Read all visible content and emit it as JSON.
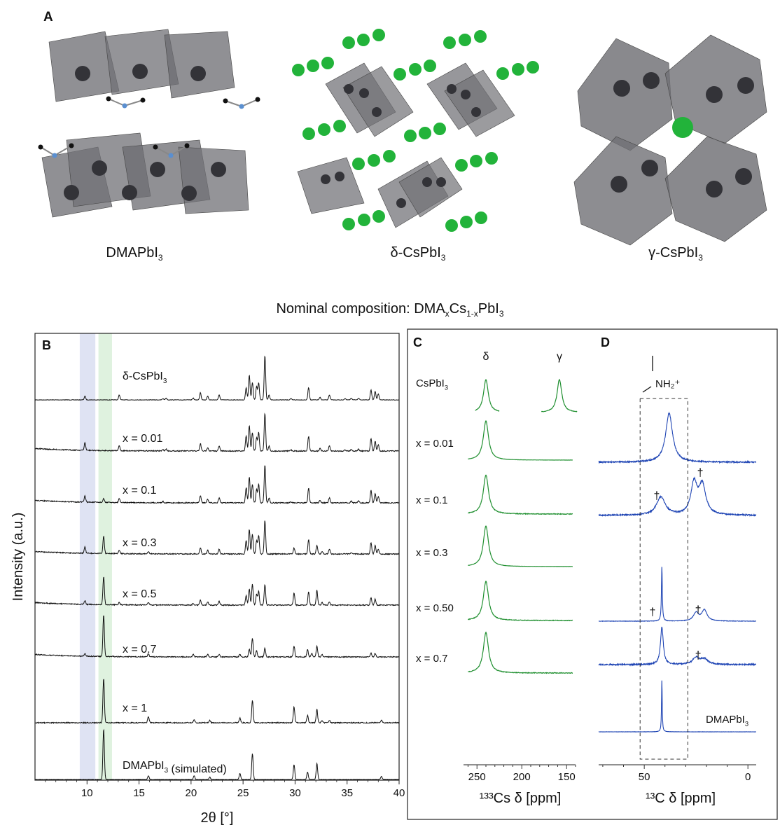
{
  "panelA": {
    "letter": "A",
    "structures": [
      {
        "main": "DMAPbI",
        "sub": "3"
      },
      {
        "main": "δ-CsPbI",
        "sub": "3"
      },
      {
        "main": "γ-CsPbI",
        "sub": "3"
      }
    ]
  },
  "composition_title": {
    "prefix": "Nominal composition: DMA",
    "sub1": "x",
    "mid": "Cs",
    "sub2": "1-x",
    "suffix": "PbI",
    "sub3": "3"
  },
  "colors": {
    "xrd": "#111111",
    "cs": "#1f8f2f",
    "c13": "#1e44b4",
    "band_blue": "#dfe3f3",
    "band_green": "#dff2df",
    "green_atom": "#22b33a",
    "octa": "#6b6b70"
  },
  "chart_data": [
    {
      "type": "line",
      "panel": "B",
      "xlabel": "2θ [°]",
      "ylabel": "Intensity (a.u.)",
      "xlim": [
        5,
        40
      ],
      "xticks": [
        10,
        15,
        20,
        25,
        30,
        35,
        40
      ],
      "highlight_bands": [
        {
          "x": [
            9.3,
            10.8
          ]
        },
        {
          "x": [
            11.1,
            12.4
          ]
        }
      ],
      "series": [
        {
          "name": "δ-CsPbI3",
          "label": "δ-CsPbI",
          "label_sub": "3",
          "peaks": [
            [
              9.8,
              0.06
            ],
            [
              13.1,
              0.08
            ],
            [
              17.3,
              0.02
            ],
            [
              17.6,
              0.03
            ],
            [
              20.2,
              0.03
            ],
            [
              20.9,
              0.12
            ],
            [
              21.6,
              0.06
            ],
            [
              22.7,
              0.08
            ],
            [
              25.3,
              0.2
            ],
            [
              25.6,
              0.4
            ],
            [
              25.9,
              0.28
            ],
            [
              26.3,
              0.22
            ],
            [
              26.5,
              0.28
            ],
            [
              27.1,
              0.72
            ],
            [
              27.5,
              0.08
            ],
            [
              29.6,
              0.02
            ],
            [
              31.3,
              0.2
            ],
            [
              32.4,
              0.04
            ],
            [
              33.3,
              0.08
            ],
            [
              34.8,
              0.02
            ],
            [
              35.4,
              0.03
            ],
            [
              36.1,
              0.03
            ],
            [
              37.3,
              0.16
            ],
            [
              37.7,
              0.14
            ],
            [
              38.0,
              0.1
            ]
          ]
        },
        {
          "name": "x = 0.01",
          "label": "x = 0.01",
          "peaks": [
            [
              9.8,
              0.12
            ],
            [
              13.1,
              0.08
            ],
            [
              17.3,
              0.02
            ],
            [
              17.6,
              0.03
            ],
            [
              20.9,
              0.12
            ],
            [
              21.6,
              0.06
            ],
            [
              22.7,
              0.08
            ],
            [
              25.3,
              0.25
            ],
            [
              25.6,
              0.42
            ],
            [
              25.9,
              0.3
            ],
            [
              26.3,
              0.22
            ],
            [
              26.5,
              0.3
            ],
            [
              27.1,
              0.62
            ],
            [
              27.5,
              0.08
            ],
            [
              29.6,
              0.02
            ],
            [
              31.3,
              0.24
            ],
            [
              32.4,
              0.04
            ],
            [
              33.3,
              0.08
            ],
            [
              34.8,
              0.02
            ],
            [
              35.4,
              0.03
            ],
            [
              36.1,
              0.03
            ],
            [
              37.3,
              0.2
            ],
            [
              37.7,
              0.16
            ],
            [
              38.0,
              0.1
            ]
          ]
        },
        {
          "name": "x = 0.1",
          "label": "x = 0.1",
          "peaks": [
            [
              9.8,
              0.1
            ],
            [
              11.6,
              0.06
            ],
            [
              13.1,
              0.06
            ],
            [
              17.3,
              0.02
            ],
            [
              20.9,
              0.12
            ],
            [
              21.6,
              0.06
            ],
            [
              22.7,
              0.08
            ],
            [
              25.3,
              0.25
            ],
            [
              25.6,
              0.42
            ],
            [
              25.9,
              0.3
            ],
            [
              26.3,
              0.22
            ],
            [
              26.5,
              0.3
            ],
            [
              27.1,
              0.62
            ],
            [
              27.5,
              0.08
            ],
            [
              29.6,
              0.02
            ],
            [
              31.3,
              0.24
            ],
            [
              32.4,
              0.04
            ],
            [
              33.3,
              0.08
            ],
            [
              35.4,
              0.03
            ],
            [
              36.1,
              0.03
            ],
            [
              37.3,
              0.2
            ],
            [
              37.7,
              0.16
            ],
            [
              38.0,
              0.1
            ]
          ]
        },
        {
          "name": "x = 0.3",
          "label": "x = 0.3",
          "peaks": [
            [
              9.8,
              0.1
            ],
            [
              11.6,
              0.28
            ],
            [
              13.1,
              0.05
            ],
            [
              15.9,
              0.03
            ],
            [
              20.9,
              0.1
            ],
            [
              21.6,
              0.06
            ],
            [
              22.7,
              0.08
            ],
            [
              25.3,
              0.22
            ],
            [
              25.6,
              0.4
            ],
            [
              25.9,
              0.32
            ],
            [
              26.3,
              0.22
            ],
            [
              26.5,
              0.3
            ],
            [
              27.1,
              0.55
            ],
            [
              29.9,
              0.1
            ],
            [
              31.3,
              0.24
            ],
            [
              32.1,
              0.14
            ],
            [
              32.6,
              0.04
            ],
            [
              33.3,
              0.08
            ],
            [
              35.4,
              0.02
            ],
            [
              37.3,
              0.18
            ],
            [
              37.7,
              0.14
            ],
            [
              38.0,
              0.08
            ]
          ]
        },
        {
          "name": "x = 0.5",
          "label": "x = 0.5",
          "peaks": [
            [
              9.8,
              0.06
            ],
            [
              11.6,
              0.46
            ],
            [
              13.1,
              0.04
            ],
            [
              15.9,
              0.04
            ],
            [
              20.2,
              0.03
            ],
            [
              20.9,
              0.08
            ],
            [
              21.6,
              0.05
            ],
            [
              22.7,
              0.06
            ],
            [
              25.3,
              0.16
            ],
            [
              25.6,
              0.26
            ],
            [
              25.9,
              0.34
            ],
            [
              26.3,
              0.18
            ],
            [
              26.5,
              0.22
            ],
            [
              27.1,
              0.34
            ],
            [
              29.9,
              0.2
            ],
            [
              31.3,
              0.22
            ],
            [
              32.1,
              0.24
            ],
            [
              32.6,
              0.04
            ],
            [
              33.3,
              0.05
            ],
            [
              37.3,
              0.12
            ],
            [
              37.7,
              0.1
            ]
          ]
        },
        {
          "name": "x = 0.7",
          "label": "x = 0.7",
          "peaks": [
            [
              9.8,
              0.04
            ],
            [
              11.6,
              0.68
            ],
            [
              15.9,
              0.05
            ],
            [
              20.2,
              0.04
            ],
            [
              21.6,
              0.04
            ],
            [
              22.7,
              0.04
            ],
            [
              24.7,
              0.04
            ],
            [
              25.6,
              0.12
            ],
            [
              25.9,
              0.3
            ],
            [
              26.3,
              0.1
            ],
            [
              27.1,
              0.14
            ],
            [
              29.9,
              0.18
            ],
            [
              31.2,
              0.12
            ],
            [
              31.6,
              0.06
            ],
            [
              32.1,
              0.18
            ],
            [
              32.6,
              0.04
            ],
            [
              37.3,
              0.06
            ],
            [
              37.7,
              0.06
            ]
          ]
        },
        {
          "name": "x = 1",
          "label": "x = 1",
          "peaks": [
            [
              11.6,
              0.72
            ],
            [
              15.9,
              0.1
            ],
            [
              20.3,
              0.05
            ],
            [
              21.8,
              0.04
            ],
            [
              24.7,
              0.08
            ],
            [
              25.9,
              0.36
            ],
            [
              29.9,
              0.26
            ],
            [
              31.2,
              0.12
            ],
            [
              32.1,
              0.22
            ],
            [
              32.6,
              0.04
            ],
            [
              33.3,
              0.04
            ],
            [
              38.3,
              0.04
            ]
          ]
        },
        {
          "name": "DMAPbI3 (simulated)",
          "label": "DMAPbI",
          "label_sub": "3",
          "label_after": " (simulated)",
          "peaks": [
            [
              11.6,
              0.82
            ],
            [
              15.9,
              0.06
            ],
            [
              20.3,
              0.06
            ],
            [
              21.8,
              0.04
            ],
            [
              24.7,
              0.1
            ],
            [
              25.9,
              0.42
            ],
            [
              29.9,
              0.24
            ],
            [
              31.2,
              0.12
            ],
            [
              32.1,
              0.26
            ],
            [
              38.3,
              0.05
            ]
          ]
        }
      ]
    },
    {
      "type": "line",
      "panel": "C",
      "xlabel": "¹³³Cs δ [ppm]",
      "xlim": [
        265,
        140
      ],
      "xticks": [
        250,
        200,
        150
      ],
      "peak_labels": [
        "δ",
        "γ"
      ],
      "row_labels": [
        {
          "main": "CsPbI",
          "sub": "3"
        },
        {
          "main": "x = 0.01"
        },
        {
          "main": "x = 0.1"
        },
        {
          "main": "x = 0.3"
        },
        {
          "main": "x = 0.50"
        },
        {
          "main": "x = 0.7"
        }
      ],
      "series": [
        {
          "name": "CsPbI3",
          "peaks": [
            [
              240,
              1.0
            ],
            [
              158,
              1.0
            ]
          ]
        },
        {
          "name": "x = 0.01",
          "peaks": [
            [
              240,
              1.0
            ]
          ]
        },
        {
          "name": "x = 0.1",
          "peaks": [
            [
              240,
              1.0
            ]
          ]
        },
        {
          "name": "x = 0.3",
          "peaks": [
            [
              240,
              1.0
            ]
          ]
        },
        {
          "name": "x = 0.50",
          "peaks": [
            [
              240,
              1.0
            ]
          ]
        },
        {
          "name": "x = 0.7",
          "peaks": [
            [
              240,
              1.0
            ]
          ]
        }
      ]
    },
    {
      "type": "line",
      "panel": "D",
      "xlabel": "¹³C δ [ppm]",
      "xlim": [
        72,
        -4
      ],
      "xticks": [
        50,
        0
      ],
      "annotation": "NH₂⁺",
      "dagger": "†",
      "row_label": {
        "main": "DMAPbI",
        "sub": "3"
      },
      "series": [
        {
          "name": "x = 0.01",
          "peaks": [
            [
              38,
              1.0,
              2.0
            ]
          ]
        },
        {
          "name": "x = 0.1",
          "peaks": [
            [
              42,
              0.5,
              2.5
            ],
            [
              26,
              0.85,
              1.8
            ],
            [
              22,
              0.8,
              2.0
            ]
          ]
        },
        {
          "name": "x = 0.50",
          "peaks": [
            [
              41.5,
              1.0,
              0.25
            ],
            [
              25,
              0.15,
              1.5
            ],
            [
              21,
              0.2,
              1.5
            ]
          ]
        },
        {
          "name": "x = 0.7",
          "peaks": [
            [
              41.5,
              1.0,
              0.8
            ],
            [
              25,
              0.18,
              2
            ],
            [
              21,
              0.14,
              2
            ]
          ]
        },
        {
          "name": "DMAPbI3",
          "peaks": [
            [
              41.5,
              1.0,
              0.2
            ]
          ]
        }
      ]
    }
  ],
  "panel_letters": {
    "B": "B",
    "C": "C",
    "D": "D"
  }
}
